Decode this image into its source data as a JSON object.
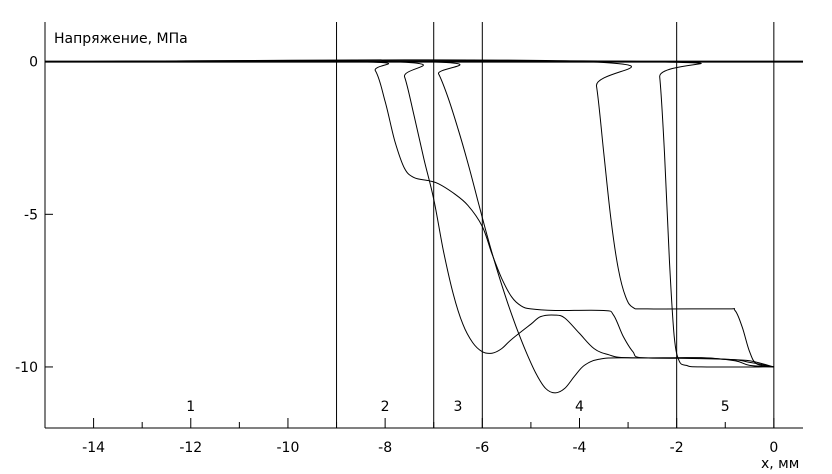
{
  "chart_data": {
    "type": "line",
    "ylabel": "Напряжение, МПа",
    "xlabel": "x, мм",
    "xlim": [
      -15,
      0.6
    ],
    "ylim": [
      -12,
      1.3
    ],
    "x_ticks": [
      -14,
      -12,
      -10,
      -8,
      -6,
      -4,
      -2,
      0
    ],
    "x_tick_labels": [
      "-14",
      "-12",
      "-10",
      "-8",
      "-6",
      "-4",
      "-2",
      "0"
    ],
    "x_minor_ticks": [
      -15,
      -13,
      -11,
      -9,
      -7,
      -5,
      -3,
      -1
    ],
    "y_ticks": [
      0,
      -5,
      -10
    ],
    "y_tick_labels": [
      "0",
      "-5",
      "-10"
    ],
    "zone_boundaries": [
      -9,
      -7,
      -6,
      -2,
      0
    ],
    "zones": [
      {
        "label": "1",
        "x": -12
      },
      {
        "label": "2",
        "x": -8
      },
      {
        "label": "3",
        "x": -6.5
      },
      {
        "label": "4",
        "x": -4
      },
      {
        "label": "5",
        "x": -1
      }
    ],
    "grid": false,
    "series": [
      {
        "points": [
          [
            -15,
            0
          ],
          [
            -8.5,
            0
          ],
          [
            -8.2,
            -0.3
          ],
          [
            -8.0,
            -1.3
          ],
          [
            -7.8,
            -2.6
          ],
          [
            -7.6,
            -3.5
          ],
          [
            -7.4,
            -3.8
          ],
          [
            -7.1,
            -3.9
          ],
          [
            -6.9,
            -4.0
          ],
          [
            -6.6,
            -4.3
          ],
          [
            -6.3,
            -4.7
          ],
          [
            -6.0,
            -5.4
          ],
          [
            -5.8,
            -6.3
          ],
          [
            -5.6,
            -7.1
          ],
          [
            -5.4,
            -7.7
          ],
          [
            -5.2,
            -8.0
          ],
          [
            -5.0,
            -8.1
          ],
          [
            -4.5,
            -8.15
          ],
          [
            -3.5,
            -8.15
          ],
          [
            -3.3,
            -8.3
          ],
          [
            -3.1,
            -9.0
          ],
          [
            -2.9,
            -9.5
          ],
          [
            -2.7,
            -9.7
          ],
          [
            -1.5,
            -9.7
          ],
          [
            -1.0,
            -9.75
          ],
          [
            -0.5,
            -9.8
          ],
          [
            0,
            -10
          ]
        ]
      },
      {
        "points": [
          [
            -15,
            0
          ],
          [
            -7.8,
            0
          ],
          [
            -7.6,
            -0.5
          ],
          [
            -7.4,
            -1.8
          ],
          [
            -7.2,
            -3.2
          ],
          [
            -7.0,
            -4.5
          ],
          [
            -6.8,
            -6.2
          ],
          [
            -6.6,
            -7.6
          ],
          [
            -6.4,
            -8.6
          ],
          [
            -6.2,
            -9.2
          ],
          [
            -6.0,
            -9.5
          ],
          [
            -5.8,
            -9.55
          ],
          [
            -5.6,
            -9.4
          ],
          [
            -5.4,
            -9.1
          ],
          [
            -5.0,
            -8.6
          ],
          [
            -4.8,
            -8.35
          ],
          [
            -4.5,
            -8.3
          ],
          [
            -4.3,
            -8.4
          ],
          [
            -4.0,
            -8.9
          ],
          [
            -3.7,
            -9.4
          ],
          [
            -3.4,
            -9.6
          ],
          [
            -3.0,
            -9.7
          ],
          [
            -1.5,
            -9.7
          ],
          [
            -0.8,
            -9.8
          ],
          [
            -0.5,
            -9.95
          ],
          [
            0,
            -10
          ]
        ]
      },
      {
        "points": [
          [
            -15,
            0
          ],
          [
            -7.1,
            0
          ],
          [
            -6.9,
            -0.4
          ],
          [
            -6.7,
            -1.2
          ],
          [
            -6.5,
            -2.2
          ],
          [
            -6.3,
            -3.3
          ],
          [
            -6.1,
            -4.5
          ],
          [
            -5.9,
            -5.7
          ],
          [
            -5.7,
            -6.8
          ],
          [
            -5.5,
            -7.8
          ],
          [
            -5.3,
            -8.7
          ],
          [
            -5.1,
            -9.5
          ],
          [
            -4.9,
            -10.2
          ],
          [
            -4.7,
            -10.7
          ],
          [
            -4.5,
            -10.85
          ],
          [
            -4.3,
            -10.7
          ],
          [
            -4.1,
            -10.3
          ],
          [
            -3.9,
            -9.95
          ],
          [
            -3.6,
            -9.75
          ],
          [
            -3.0,
            -9.7
          ],
          [
            -1.0,
            -9.75
          ],
          [
            -0.5,
            -9.85
          ],
          [
            0,
            -10
          ]
        ]
      },
      {
        "points": [
          [
            -15,
            0
          ],
          [
            -3.8,
            0
          ],
          [
            -3.65,
            -0.8
          ],
          [
            -3.5,
            -3.0
          ],
          [
            -3.35,
            -5.2
          ],
          [
            -3.2,
            -6.8
          ],
          [
            -3.05,
            -7.7
          ],
          [
            -2.9,
            -8.05
          ],
          [
            -2.6,
            -8.1
          ],
          [
            -1.0,
            -8.1
          ],
          [
            -0.8,
            -8.15
          ],
          [
            -0.65,
            -8.7
          ],
          [
            -0.5,
            -9.5
          ],
          [
            -0.35,
            -9.9
          ],
          [
            0,
            -10
          ]
        ]
      },
      {
        "points": [
          [
            -15,
            0
          ],
          [
            -2.45,
            0
          ],
          [
            -2.35,
            -0.5
          ],
          [
            -2.25,
            -3.0
          ],
          [
            -2.15,
            -6.5
          ],
          [
            -2.05,
            -9.0
          ],
          [
            -1.95,
            -9.8
          ],
          [
            -1.8,
            -9.95
          ],
          [
            -1.5,
            -10
          ],
          [
            0,
            -10
          ]
        ]
      }
    ]
  }
}
